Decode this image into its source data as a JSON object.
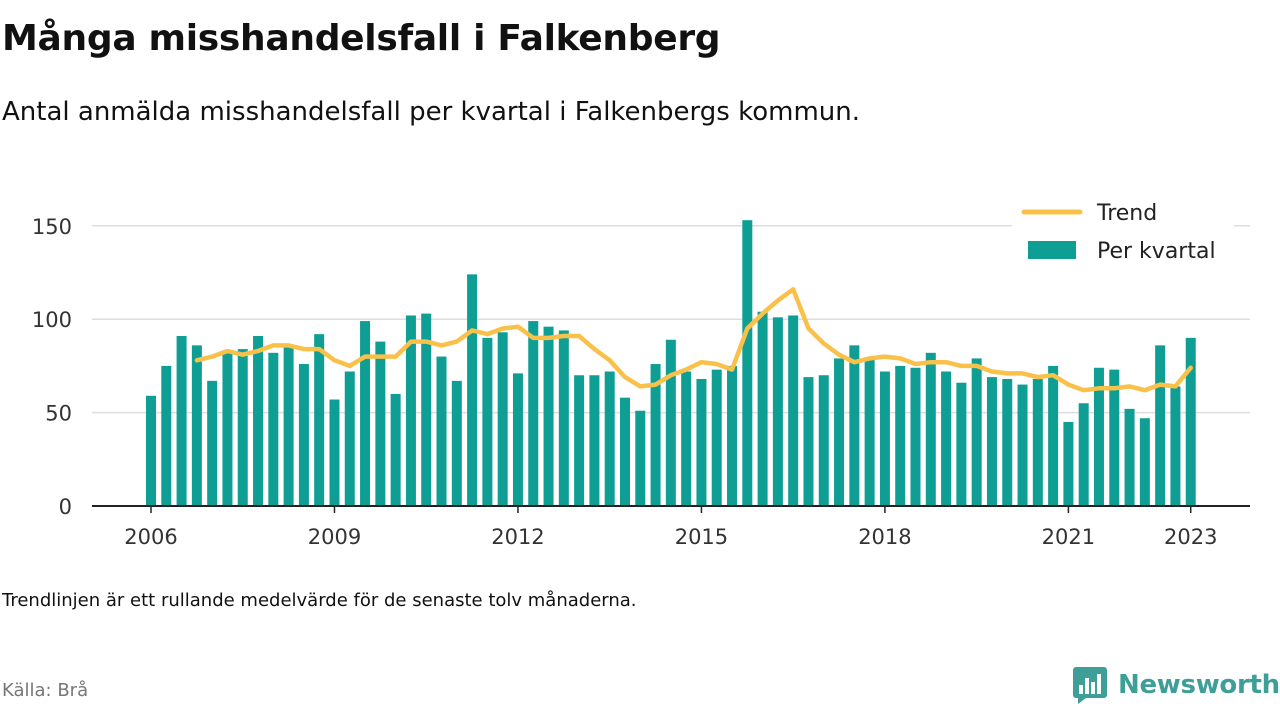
{
  "header": {
    "title": "Många misshandelsfall i Falkenberg",
    "subtitle": "Antal anmälda misshandelsfall per kvartal i Falkenbergs kommun."
  },
  "footer": {
    "note": "Trendlinjen är ett rullande medelvärde för de senaste tolv månaderna.",
    "source": "Källa: Brå",
    "brand": "Newsworthy"
  },
  "colors": {
    "bars": "#0f9e94",
    "trend": "#f9c14a",
    "grid": "#dddddd",
    "axis": "#222222",
    "brand": "#3e9e98"
  },
  "chart_data": {
    "type": "bar",
    "x_ticks": [
      "2006",
      "2009",
      "2012",
      "2015",
      "2018",
      "2021",
      "2023"
    ],
    "y_ticks": [
      "0",
      "50",
      "100",
      "150"
    ],
    "ylim": [
      0,
      160
    ],
    "grid": true,
    "legend_position": "top-right",
    "categories": [
      "2006 Q1",
      "2006 Q2",
      "2006 Q3",
      "2006 Q4",
      "2007 Q1",
      "2007 Q2",
      "2007 Q3",
      "2007 Q4",
      "2008 Q1",
      "2008 Q2",
      "2008 Q3",
      "2008 Q4",
      "2009 Q1",
      "2009 Q2",
      "2009 Q3",
      "2009 Q4",
      "2010 Q1",
      "2010 Q2",
      "2010 Q3",
      "2010 Q4",
      "2011 Q1",
      "2011 Q2",
      "2011 Q3",
      "2011 Q4",
      "2012 Q1",
      "2012 Q2",
      "2012 Q3",
      "2012 Q4",
      "2013 Q1",
      "2013 Q2",
      "2013 Q3",
      "2013 Q4",
      "2014 Q1",
      "2014 Q2",
      "2014 Q3",
      "2014 Q4",
      "2015 Q1",
      "2015 Q2",
      "2015 Q3",
      "2015 Q4",
      "2016 Q1",
      "2016 Q2",
      "2016 Q3",
      "2016 Q4",
      "2017 Q1",
      "2017 Q2",
      "2017 Q3",
      "2017 Q4",
      "2018 Q1",
      "2018 Q2",
      "2018 Q3",
      "2018 Q4",
      "2019 Q1",
      "2019 Q2",
      "2019 Q3",
      "2019 Q4",
      "2020 Q1",
      "2020 Q2",
      "2020 Q3",
      "2020 Q4",
      "2021 Q1",
      "2021 Q2",
      "2021 Q3",
      "2021 Q4",
      "2022 Q1",
      "2022 Q2",
      "2022 Q3",
      "2022 Q4",
      "2023 Q1",
      "2023 Q2"
    ],
    "series": [
      {
        "name": "Per kvartal",
        "type": "bar",
        "values": [
          59,
          75,
          91,
          86,
          67,
          82,
          84,
          91,
          82,
          86,
          76,
          92,
          57,
          72,
          99,
          88,
          60,
          102,
          103,
          80,
          67,
          124,
          90,
          93,
          71,
          99,
          96,
          94,
          70,
          70,
          72,
          58,
          51,
          76,
          89,
          72,
          68,
          73,
          75,
          153,
          104,
          101,
          102,
          69,
          70,
          79,
          86,
          79,
          72,
          75,
          74,
          82,
          72,
          66,
          79,
          69,
          68,
          65,
          68,
          75,
          45,
          55,
          74,
          73,
          52,
          47,
          86,
          64,
          90,
          null
        ]
      },
      {
        "name": "Trend",
        "type": "line",
        "values": [
          null,
          null,
          null,
          78,
          80,
          83,
          81,
          83,
          86,
          86,
          84,
          84,
          78,
          75,
          80,
          80,
          80,
          88,
          88,
          86,
          88,
          94,
          92,
          95,
          96,
          90,
          90,
          91,
          91,
          84,
          78,
          69,
          64,
          65,
          70,
          73,
          77,
          76,
          73,
          95,
          103,
          110,
          116,
          95,
          87,
          81,
          77,
          79,
          80,
          79,
          76,
          77,
          77,
          75,
          75,
          72,
          71,
          71,
          69,
          70,
          65,
          62,
          63,
          63,
          64,
          62,
          65,
          64,
          74,
          null
        ]
      }
    ]
  }
}
